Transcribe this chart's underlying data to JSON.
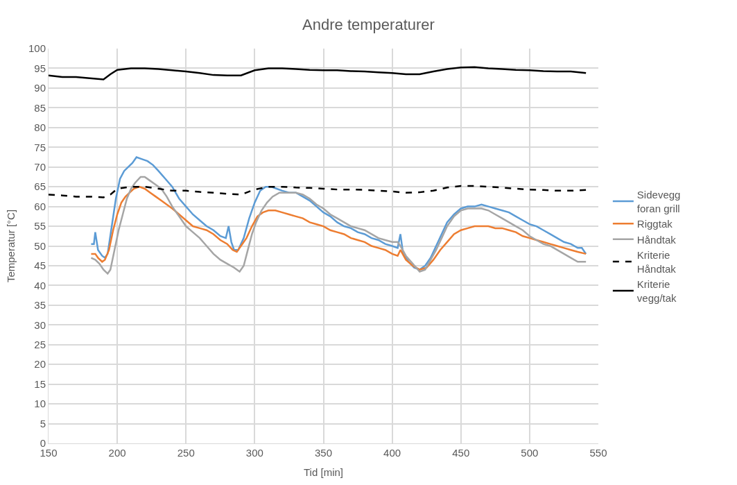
{
  "chart_data": {
    "type": "line",
    "title": "Andre temperaturer",
    "xlabel": "Tid [min]",
    "ylabel": "Temperatur [°C]",
    "xlim": [
      150,
      550
    ],
    "xticks": [
      150,
      200,
      250,
      300,
      350,
      400,
      450,
      500,
      550
    ],
    "ylim": [
      0,
      100
    ],
    "yticks": [
      0,
      5,
      10,
      15,
      20,
      25,
      30,
      35,
      40,
      45,
      50,
      55,
      60,
      65,
      70,
      75,
      80,
      85,
      90,
      95,
      100
    ],
    "grid": true,
    "legend": "right",
    "marker": "none",
    "series": [
      {
        "name": "Sidevegg foran grill",
        "color": "#5b9bd5",
        "line_style": "solid",
        "x": [
          181,
          183,
          184,
          186,
          189,
          191,
          193,
          196,
          199,
          202,
          205,
          208,
          211,
          214,
          218,
          222,
          226,
          230,
          235,
          240,
          245,
          250,
          255,
          260,
          265,
          270,
          275,
          279,
          281,
          283,
          285,
          288,
          292,
          296,
          300,
          304,
          308,
          312,
          316,
          320,
          325,
          330,
          335,
          340,
          345,
          350,
          355,
          360,
          365,
          370,
          375,
          380,
          385,
          390,
          395,
          400,
          404,
          406,
          408,
          412,
          416,
          420,
          424,
          428,
          432,
          436,
          440,
          445,
          450,
          455,
          460,
          465,
          470,
          475,
          480,
          485,
          490,
          495,
          500,
          505,
          510,
          515,
          520,
          525,
          530,
          535,
          538,
          541
        ],
        "values": [
          50.5,
          50.5,
          53.5,
          49,
          47.5,
          47,
          48,
          55,
          62,
          67,
          69,
          70,
          71,
          72.5,
          72,
          71.5,
          70.5,
          69,
          67,
          65,
          62,
          60,
          58,
          56.5,
          55,
          54,
          52.5,
          52,
          55,
          51,
          49,
          49,
          52,
          57,
          61,
          64,
          65,
          65,
          64.5,
          64,
          63.5,
          63.5,
          62.5,
          61.5,
          60,
          58.5,
          57.5,
          56,
          55,
          54.5,
          53.5,
          53,
          52,
          51.5,
          50.5,
          50,
          49.5,
          53,
          48,
          46,
          44.5,
          44,
          45,
          47,
          50,
          53,
          56,
          58,
          59.5,
          60,
          60,
          60.5,
          60,
          59.5,
          59,
          58.5,
          57.5,
          56.5,
          55.5,
          55,
          54,
          53,
          52,
          51,
          50.5,
          49.5,
          49.5,
          48
        ]
      },
      {
        "name": "Riggtak",
        "color": "#ed7d31",
        "line_style": "solid",
        "x": [
          181,
          184,
          186,
          189,
          191,
          194,
          197,
          200,
          203,
          206,
          209,
          212,
          216,
          220,
          224,
          228,
          232,
          236,
          240,
          245,
          250,
          255,
          260,
          265,
          270,
          275,
          280,
          284,
          287,
          290,
          294,
          298,
          302,
          306,
          310,
          315,
          320,
          325,
          330,
          335,
          340,
          345,
          350,
          355,
          360,
          365,
          370,
          375,
          380,
          385,
          390,
          395,
          400,
          404,
          406,
          410,
          415,
          420,
          425,
          430,
          435,
          440,
          445,
          450,
          455,
          460,
          465,
          470,
          475,
          480,
          485,
          490,
          495,
          500,
          505,
          510,
          515,
          520,
          525,
          530,
          535,
          541
        ],
        "values": [
          48,
          48,
          47,
          46,
          46.5,
          49,
          54,
          58,
          61,
          62.5,
          63.5,
          64.5,
          65,
          64.5,
          63.5,
          62.5,
          61.5,
          60.5,
          59.5,
          58,
          56.5,
          55,
          54.5,
          54,
          53,
          51.5,
          50.5,
          49,
          48.5,
          50,
          52,
          55,
          57.5,
          58.5,
          59,
          59,
          58.5,
          58,
          57.5,
          57,
          56,
          55.5,
          55,
          54,
          53.5,
          53,
          52,
          51.5,
          51,
          50,
          49.5,
          49,
          48,
          47.5,
          49,
          46.5,
          45,
          44,
          44.5,
          46.5,
          49,
          51,
          53,
          54,
          54.5,
          55,
          55,
          55,
          54.5,
          54.5,
          54,
          53.5,
          52.5,
          52,
          51.5,
          51,
          50.5,
          50,
          49.5,
          49,
          48.5,
          48
        ]
      },
      {
        "name": "Håndtak",
        "color": "#a5a5a5",
        "line_style": "solid",
        "x": [
          181,
          184,
          187,
          190,
          193,
          195,
          198,
          201,
          204,
          207,
          210,
          213,
          217,
          220,
          224,
          228,
          232,
          236,
          240,
          245,
          250,
          255,
          260,
          265,
          270,
          275,
          280,
          285,
          289,
          292,
          295,
          298,
          301,
          305,
          309,
          313,
          318,
          322,
          326,
          330,
          335,
          340,
          345,
          350,
          355,
          360,
          365,
          370,
          375,
          380,
          385,
          390,
          395,
          400,
          404,
          406,
          410,
          415,
          420,
          424,
          428,
          432,
          436,
          440,
          445,
          450,
          455,
          460,
          465,
          470,
          475,
          480,
          485,
          490,
          495,
          500,
          505,
          510,
          515,
          520,
          525,
          530,
          535,
          541
        ],
        "values": [
          47,
          46.5,
          45.5,
          44,
          43,
          44,
          49,
          54,
          58,
          62,
          64.5,
          66,
          67.5,
          67.5,
          66.5,
          65.5,
          64.5,
          62.5,
          60,
          57.5,
          55,
          53.5,
          52,
          50,
          48,
          46.5,
          45.5,
          44.5,
          43.5,
          45,
          49,
          53,
          56,
          59,
          61,
          62.5,
          63.5,
          63.5,
          63.5,
          63.5,
          63,
          62,
          60.5,
          59.5,
          58,
          57,
          56,
          55,
          54.5,
          54,
          53,
          52,
          51.5,
          51,
          51,
          50,
          47.5,
          45.5,
          43.5,
          44,
          46.5,
          49,
          52,
          55,
          57.5,
          59,
          59.5,
          59.5,
          59.5,
          59,
          58,
          57,
          56,
          55,
          54,
          52.5,
          51.5,
          50.5,
          50,
          49,
          48,
          47,
          46,
          46
        ]
      },
      {
        "name": "Kriterie Håndtak",
        "color": "#000000",
        "line_style": "dashed",
        "x": [
          150,
          160,
          170,
          180,
          190,
          195,
          200,
          210,
          220,
          230,
          240,
          250,
          260,
          270,
          280,
          290,
          300,
          310,
          320,
          330,
          340,
          350,
          360,
          370,
          380,
          390,
          400,
          410,
          420,
          430,
          440,
          450,
          460,
          470,
          480,
          490,
          500,
          510,
          520,
          530,
          541
        ],
        "values": [
          63,
          62.8,
          62.5,
          62.5,
          62.3,
          63,
          64.5,
          65,
          65,
          64.5,
          64,
          64,
          63.7,
          63.5,
          63.2,
          63,
          64.3,
          65,
          65,
          64.8,
          64.7,
          64.5,
          64.3,
          64.3,
          64.2,
          64,
          63.8,
          63.5,
          63.6,
          64,
          64.8,
          65.2,
          65.2,
          65,
          64.8,
          64.5,
          64.3,
          64.2,
          64,
          64,
          64.2
        ]
      },
      {
        "name": "Kriterie vegg/tak",
        "color": "#000000",
        "line_style": "solid",
        "x": [
          150,
          160,
          170,
          180,
          190,
          195,
          200,
          210,
          220,
          230,
          240,
          250,
          260,
          270,
          280,
          290,
          300,
          310,
          320,
          330,
          340,
          350,
          360,
          370,
          380,
          390,
          400,
          410,
          420,
          430,
          440,
          450,
          460,
          470,
          480,
          490,
          500,
          510,
          520,
          530,
          541
        ],
        "values": [
          93.2,
          92.8,
          92.8,
          92.5,
          92.2,
          93.5,
          94.6,
          95,
          95,
          94.8,
          94.5,
          94.2,
          93.8,
          93.3,
          93.2,
          93.2,
          94.5,
          95,
          95,
          94.8,
          94.6,
          94.5,
          94.5,
          94.3,
          94.2,
          94,
          93.8,
          93.5,
          93.5,
          94.2,
          94.8,
          95.2,
          95.3,
          95,
          94.8,
          94.6,
          94.5,
          94.3,
          94.2,
          94.2,
          93.8
        ]
      }
    ]
  }
}
